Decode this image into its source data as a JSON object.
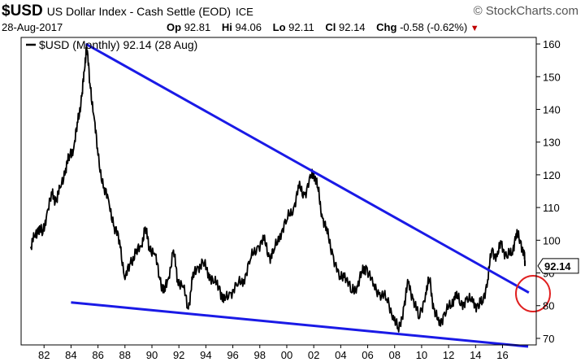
{
  "header": {
    "symbol": "$USD",
    "name": "US Dollar Index - Cash Settle (EOD)",
    "exchange": "ICE",
    "brand": "© StockCharts.com",
    "date": "28-Aug-2017",
    "stats": [
      {
        "label": "Op",
        "value": "92.81"
      },
      {
        "label": "Hi",
        "value": "94.06"
      },
      {
        "label": "Lo",
        "value": "92.11"
      },
      {
        "label": "Cl",
        "value": "92.14"
      },
      {
        "label": "Chg",
        "value": "-0.58 (-0.62%)"
      }
    ]
  },
  "chart_data": {
    "type": "line",
    "legend": "$USD (Monthly) 92.14 (28 Aug)",
    "last_value_label": "92.14",
    "x_tick_labels": [
      "82",
      "84",
      "86",
      "88",
      "90",
      "92",
      "94",
      "96",
      "98",
      "00",
      "02",
      "04",
      "06",
      "08",
      "10",
      "12",
      "14",
      "16"
    ],
    "y_tick_labels": [
      "70",
      "80",
      "90",
      "100",
      "110",
      "120",
      "130",
      "140",
      "150",
      "160"
    ],
    "ylim": [
      68,
      162
    ],
    "series": [
      {
        "values": [
          [
            1981.0,
            98
          ],
          [
            1981.3,
            101
          ],
          [
            1981.6,
            104
          ],
          [
            1981.9,
            102
          ],
          [
            1982.2,
            108
          ],
          [
            1982.6,
            114
          ],
          [
            1982.9,
            112
          ],
          [
            1983.2,
            116
          ],
          [
            1983.6,
            122
          ],
          [
            1983.9,
            126
          ],
          [
            1984.2,
            128
          ],
          [
            1984.5,
            136
          ],
          [
            1984.8,
            144
          ],
          [
            1985.0,
            152
          ],
          [
            1985.15,
            160
          ],
          [
            1985.4,
            148
          ],
          [
            1985.7,
            138
          ],
          [
            1986.0,
            126
          ],
          [
            1986.4,
            116
          ],
          [
            1986.8,
            112
          ],
          [
            1987.2,
            104
          ],
          [
            1987.6,
            100
          ],
          [
            1988.0,
            88
          ],
          [
            1988.4,
            93
          ],
          [
            1988.8,
            96
          ],
          [
            1989.2,
            98
          ],
          [
            1989.5,
            104
          ],
          [
            1989.8,
            98
          ],
          [
            1990.2,
            96
          ],
          [
            1990.6,
            88
          ],
          [
            1990.9,
            84
          ],
          [
            1991.2,
            88
          ],
          [
            1991.6,
            97
          ],
          [
            1991.9,
            88
          ],
          [
            1992.3,
            86
          ],
          [
            1992.7,
            79
          ],
          [
            1993.0,
            88
          ],
          [
            1993.4,
            92
          ],
          [
            1993.8,
            93
          ],
          [
            1994.2,
            90
          ],
          [
            1994.6,
            87
          ],
          [
            1995.0,
            86
          ],
          [
            1995.3,
            81
          ],
          [
            1995.8,
            84
          ],
          [
            1996.3,
            86
          ],
          [
            1996.8,
            88
          ],
          [
            1997.3,
            94
          ],
          [
            1997.8,
            98
          ],
          [
            1998.3,
            100
          ],
          [
            1998.7,
            95
          ],
          [
            1999.0,
            96
          ],
          [
            1999.5,
            102
          ],
          [
            2000.0,
            106
          ],
          [
            2000.5,
            110
          ],
          [
            2000.9,
            116
          ],
          [
            2001.3,
            114
          ],
          [
            2001.8,
            119
          ],
          [
            2002.0,
            121
          ],
          [
            2002.3,
            116
          ],
          [
            2002.6,
            108
          ],
          [
            2003.0,
            102
          ],
          [
            2003.4,
            96
          ],
          [
            2003.9,
            88
          ],
          [
            2004.3,
            90
          ],
          [
            2004.8,
            84
          ],
          [
            2005.2,
            86
          ],
          [
            2005.6,
            90
          ],
          [
            2005.9,
            92
          ],
          [
            2006.4,
            86
          ],
          [
            2006.9,
            84
          ],
          [
            2007.4,
            82
          ],
          [
            2007.9,
            77
          ],
          [
            2008.3,
            72
          ],
          [
            2008.7,
            80
          ],
          [
            2009.0,
            87
          ],
          [
            2009.4,
            82
          ],
          [
            2009.8,
            76
          ],
          [
            2010.3,
            84
          ],
          [
            2010.6,
            88
          ],
          [
            2010.9,
            79
          ],
          [
            2011.3,
            74
          ],
          [
            2011.7,
            78
          ],
          [
            2012.2,
            80
          ],
          [
            2012.5,
            84
          ],
          [
            2012.9,
            80
          ],
          [
            2013.3,
            82
          ],
          [
            2013.8,
            81
          ],
          [
            2014.2,
            80
          ],
          [
            2014.5,
            81
          ],
          [
            2014.9,
            88
          ],
          [
            2015.2,
            97
          ],
          [
            2015.6,
            95
          ],
          [
            2015.9,
            99
          ],
          [
            2016.3,
            95
          ],
          [
            2016.7,
            96
          ],
          [
            2017.0,
            102
          ],
          [
            2017.3,
            100
          ],
          [
            2017.6,
            96
          ],
          [
            2017.67,
            92.14
          ]
        ]
      },
      {
        "values": [
          [
            1985.1,
            160
          ],
          [
            2017.95,
            84
          ]
        ]
      },
      {
        "values": [
          [
            1984.0,
            81
          ],
          [
            2017.9,
            67.5
          ]
        ]
      }
    ]
  },
  "colors": {
    "price_line": "#000000",
    "trendline": "#1a1ae6",
    "circle": "#e02020",
    "axis": "#000000"
  }
}
